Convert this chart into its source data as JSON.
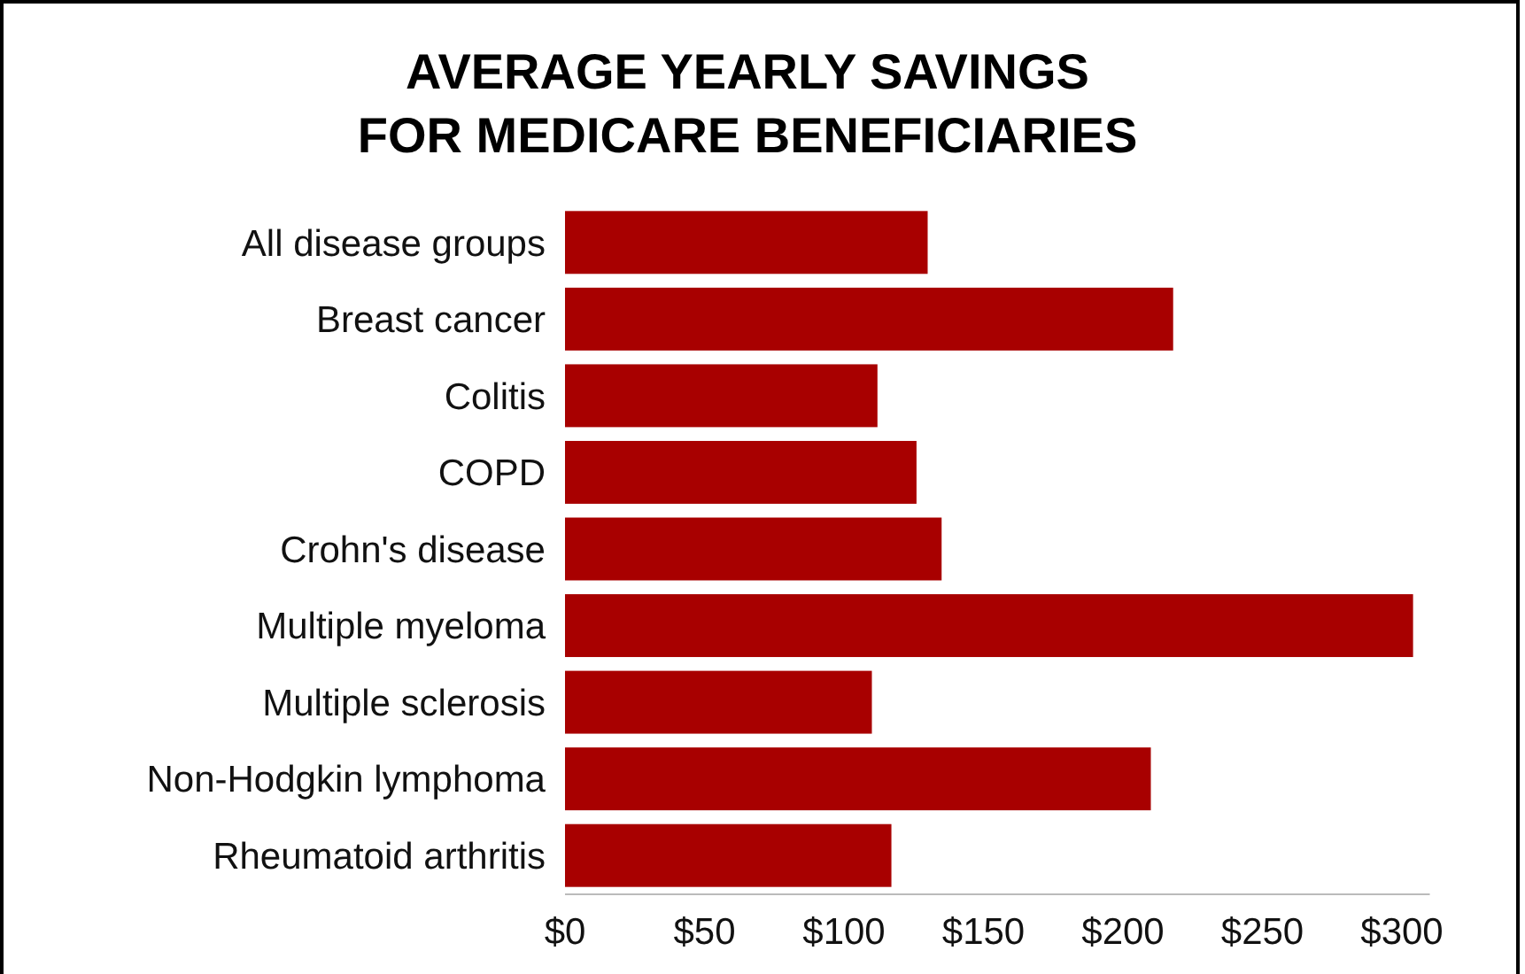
{
  "chart_data": {
    "type": "bar",
    "orientation": "horizontal",
    "title": "AVERAGE YEARLY SAVINGS\nFOR MEDICARE BENEFICIARIES",
    "categories": [
      "All disease groups",
      "Breast cancer",
      "Colitis",
      "COPD",
      "Crohn's disease",
      "Multiple myeloma",
      "Multiple sclerosis",
      "Non-Hodgkin lymphoma",
      "Rheumatoid arthritis"
    ],
    "values": [
      130,
      218,
      112,
      126,
      135,
      304,
      110,
      210,
      117
    ],
    "color": "#a80000",
    "xlim": [
      0,
      310
    ],
    "xticks": [
      {
        "value": 0,
        "label": "$0"
      },
      {
        "value": 50,
        "label": "$50"
      },
      {
        "value": 100,
        "label": "$100"
      },
      {
        "value": 150,
        "label": "$150"
      },
      {
        "value": 200,
        "label": "$200"
      },
      {
        "value": 250,
        "label": "$250"
      },
      {
        "value": 300,
        "label": "$300"
      }
    ],
    "grid": false
  }
}
